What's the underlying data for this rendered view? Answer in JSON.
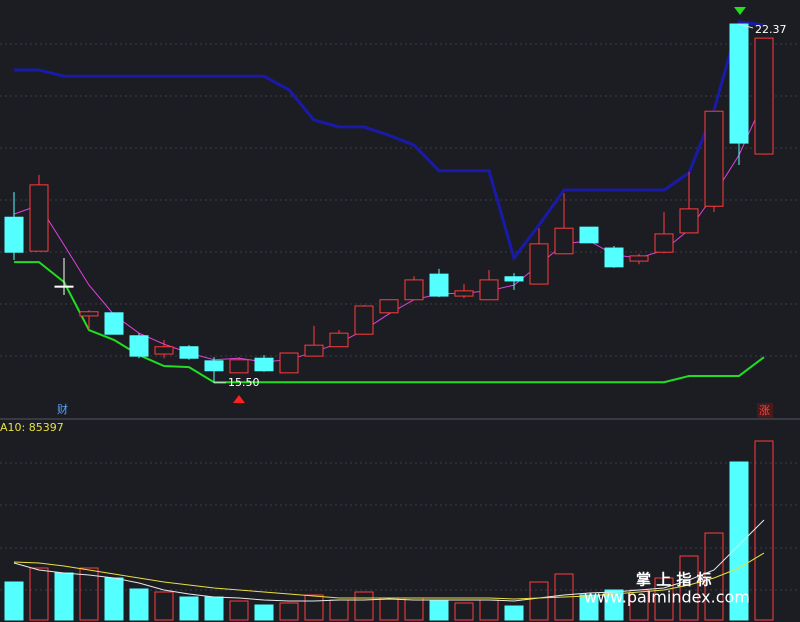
{
  "chart_data": [
    {
      "type": "candlestick",
      "open": [
        18.67,
        18.02,
        17.35,
        16.78,
        16.84,
        16.4,
        16.05,
        16.19,
        15.92,
        15.69,
        15.97,
        15.69,
        16.01,
        16.19,
        16.43,
        16.84,
        17.09,
        17.58,
        17.16,
        17.09,
        17.53,
        17.39,
        17.97,
        18.48,
        18.08,
        17.83,
        18.0,
        18.37,
        18.88,
        22.37,
        19.88
      ],
      "high": [
        19.15,
        19.48,
        17.89,
        16.89,
        16.84,
        16.45,
        16.32,
        16.22,
        15.99,
        15.99,
        16.03,
        16.07,
        16.59,
        16.51,
        16.99,
        17.1,
        17.54,
        17.68,
        17.39,
        17.66,
        17.6,
        18.46,
        19.13,
        18.48,
        18.12,
        17.97,
        18.77,
        19.54,
        20.7,
        22.37,
        22.1
      ],
      "low": [
        17.85,
        18.02,
        17.18,
        16.51,
        16.43,
        15.97,
        15.97,
        15.94,
        15.5,
        15.69,
        15.71,
        15.69,
        16.01,
        16.19,
        16.43,
        16.84,
        17.09,
        17.14,
        17.12,
        17.09,
        17.28,
        17.39,
        17.97,
        18.18,
        17.7,
        17.77,
        17.98,
        18.37,
        18.77,
        19.67,
        19.88
      ],
      "close": [
        18.0,
        19.29,
        17.35,
        16.86,
        16.43,
        16.01,
        16.19,
        15.97,
        15.73,
        15.94,
        15.73,
        16.07,
        16.22,
        16.45,
        16.97,
        17.09,
        17.47,
        17.16,
        17.26,
        17.47,
        17.45,
        18.16,
        18.46,
        18.18,
        17.72,
        17.93,
        18.35,
        18.83,
        20.7,
        20.09,
        22.1
      ],
      "up_color": "#ff3b3b",
      "down_color": "#54ffff",
      "doji_color": "#ffffff",
      "series": [
        {
          "color": "#1a1aa8",
          "values": [
            21.49,
            21.49,
            21.37,
            21.37,
            21.37,
            21.37,
            21.37,
            21.37,
            21.37,
            21.37,
            21.37,
            21.11,
            20.53,
            20.4,
            20.4,
            20.24,
            20.05,
            19.56,
            19.56,
            19.56,
            17.89,
            18.52,
            19.19,
            19.19,
            19.19,
            19.19,
            19.19,
            19.52,
            20.72,
            22.41,
            22.35
          ]
        },
        {
          "color": "#22dd22",
          "values": [
            17.81,
            17.81,
            17.43,
            16.51,
            16.32,
            16.03,
            15.82,
            15.8,
            15.51,
            15.51,
            15.51,
            15.51,
            15.51,
            15.51,
            15.51,
            15.51,
            15.51,
            15.51,
            15.51,
            15.51,
            15.51,
            15.51,
            15.51,
            15.51,
            15.51,
            15.51,
            15.51,
            15.63,
            15.63,
            15.63,
            15.99
          ]
        },
        {
          "color": "#e040e0",
          "values": [
            18.73,
            18.9,
            18.14,
            17.37,
            16.8,
            16.45,
            16.24,
            16.07,
            15.94,
            15.97,
            15.9,
            15.94,
            16.09,
            16.26,
            16.51,
            16.82,
            17.09,
            17.2,
            17.22,
            17.26,
            17.37,
            17.76,
            18.16,
            18.22,
            17.95,
            17.89,
            18.04,
            18.43,
            19.1,
            19.86,
            20.92
          ]
        }
      ],
      "ylim": [
        15.17,
        22.83
      ],
      "max_label": "22.37",
      "min_label": "15.50"
    },
    {
      "type": "volume",
      "values": [
        48450,
        66300,
        59925,
        66300,
        53550,
        39525,
        35700,
        29325,
        29325,
        24225,
        19125,
        21675,
        31875,
        25500,
        35700,
        28050,
        28050,
        24225,
        21675,
        25500,
        17850,
        48450,
        58650,
        31875,
        38250,
        38250,
        53550,
        81600,
        110925,
        201450,
        228225
      ],
      "series": [
        {
          "color": "#e8e8e8",
          "values": [
            72675,
            63750,
            59925,
            57375,
            53550,
            47175,
            38250,
            33150,
            29325,
            28050,
            25500,
            24225,
            24225,
            25500,
            25500,
            26775,
            25500,
            25500,
            25500,
            25500,
            24225,
            28050,
            31875,
            34425,
            35700,
            38250,
            40800,
            51000,
            63750,
            95625,
            127500
          ]
        },
        {
          "color": "#e8e040",
          "values": [
            73950,
            72675,
            68850,
            63750,
            58650,
            53550,
            48450,
            44625,
            40800,
            38250,
            35700,
            33150,
            30600,
            28050,
            28050,
            28050,
            28050,
            28050,
            28050,
            28050,
            26775,
            28050,
            29325,
            30600,
            33150,
            35700,
            38250,
            44625,
            53550,
            66300,
            85397
          ]
        }
      ],
      "ylim": [
        0,
        255000
      ],
      "label": "A10: 85397"
    }
  ],
  "markers": {
    "finance": "财",
    "rise": "涨"
  },
  "watermark": {
    "title": "掌 上 指 标",
    "url": "www.palmindex.com"
  }
}
